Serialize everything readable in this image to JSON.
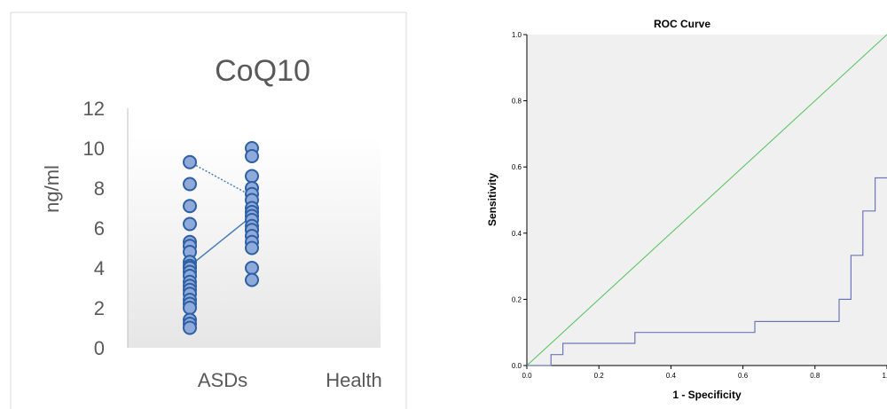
{
  "chart_data": [
    {
      "type": "scatter",
      "title": "CoQ10",
      "xlabel": "",
      "ylabel": "ng/ml",
      "ylim": [
        0,
        12
      ],
      "yticks": [
        "0",
        "2",
        "4",
        "6",
        "8",
        "10",
        "12"
      ],
      "categories": [
        "ASDs",
        "Health"
      ],
      "grid": false,
      "colors": {
        "marker_fill": "#8eaadb",
        "marker_stroke": "#2e5fa3",
        "line": "#4a7ebb",
        "axis": "#bfbfbf",
        "text": "#595959"
      },
      "series": [
        {
          "category": "ASDs",
          "values": [
            9.3,
            8.2,
            7.1,
            6.2,
            5.3,
            5.1,
            4.8,
            4.3,
            4.1,
            4.0,
            3.8,
            3.6,
            3.3,
            3.1,
            2.9,
            2.7,
            2.4,
            2.2,
            2.0,
            1.4,
            1.2,
            1.0
          ]
        },
        {
          "category": "Health",
          "values": [
            10.0,
            9.6,
            8.6,
            8.0,
            7.7,
            7.4,
            7.0,
            6.8,
            6.6,
            6.4,
            6.1,
            5.9,
            5.6,
            5.3,
            5.0,
            4.0,
            3.4
          ]
        }
      ],
      "connectors": [
        {
          "style": "dotted",
          "from": 9.3,
          "to": 7.6
        },
        {
          "style": "solid",
          "from": 4.1,
          "to": 6.6
        }
      ]
    },
    {
      "type": "line",
      "title": "ROC Curve",
      "xlabel": "1 - Specificity",
      "ylabel": "Sensitivity",
      "xlim": [
        0,
        1
      ],
      "ylim": [
        0,
        1
      ],
      "xticks": [
        "0.0",
        "0.2",
        "0.4",
        "0.6",
        "0.8",
        "1.0"
      ],
      "yticks": [
        "0.0",
        "0.2",
        "0.4",
        "0.6",
        "0.8",
        "1.0"
      ],
      "grid": false,
      "colors": {
        "background": "#f0f0f0",
        "roc": "#6b77b8",
        "reference": "#52c15a",
        "axis": "#000000"
      },
      "series": [
        {
          "x": [
            0.0,
            0.067,
            0.067,
            0.1,
            0.1,
            0.3,
            0.3,
            0.633,
            0.633,
            0.867,
            0.867,
            0.9,
            0.9,
            0.933,
            0.933,
            0.967,
            0.967,
            1.0
          ],
          "y": [
            0.0,
            0.0,
            0.033,
            0.033,
            0.067,
            0.067,
            0.1,
            0.1,
            0.133,
            0.133,
            0.2,
            0.2,
            0.333,
            0.333,
            0.467,
            0.467,
            0.567,
            0.567
          ]
        },
        {
          "x": [
            0,
            1
          ],
          "y": [
            0,
            1
          ]
        }
      ]
    }
  ]
}
